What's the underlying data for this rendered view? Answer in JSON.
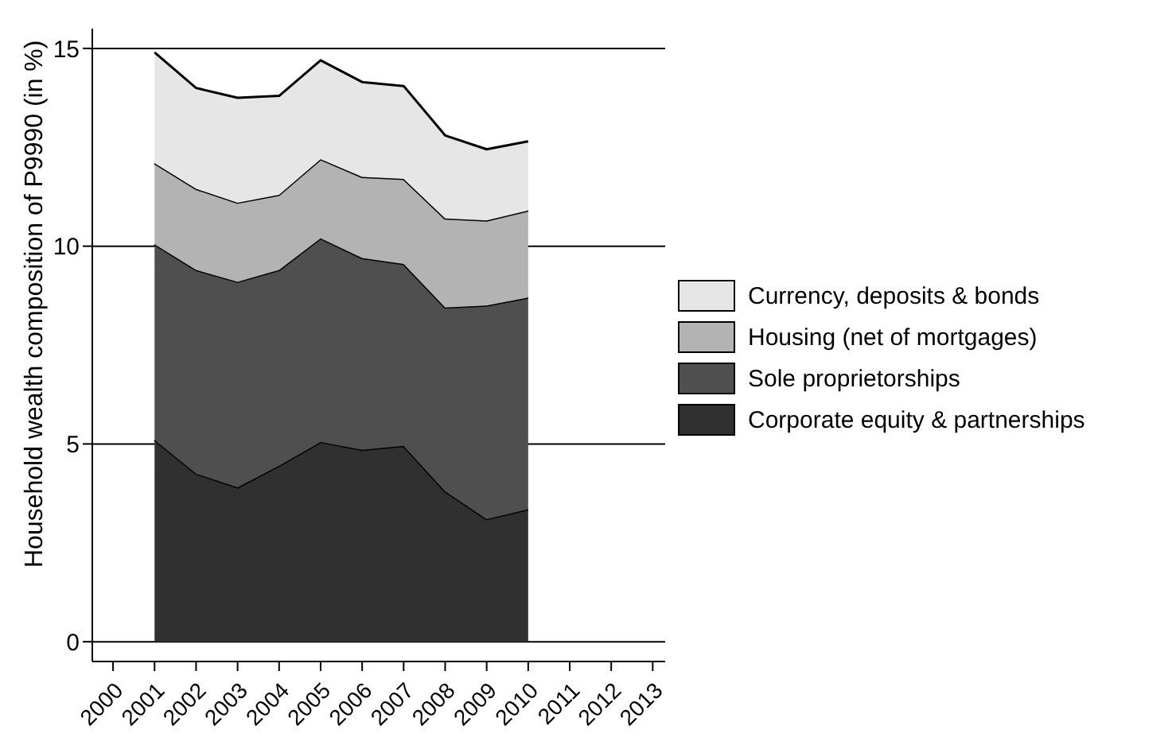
{
  "chart_data": {
    "type": "area",
    "stacked": true,
    "ylabel": "Household wealth composition of P9990 (in %)",
    "x": [
      2001,
      2002,
      2003,
      2004,
      2005,
      2006,
      2007,
      2008,
      2009,
      2010
    ],
    "series": [
      {
        "name": "Corporate equity & partnerships",
        "color": "#303030",
        "values": [
          5.1,
          4.25,
          3.9,
          4.45,
          5.05,
          4.85,
          4.95,
          3.8,
          3.1,
          3.35
        ]
      },
      {
        "name": "Sole proprietorships",
        "color": "#4f4f4f",
        "values": [
          4.95,
          5.15,
          5.2,
          4.95,
          5.15,
          4.85,
          4.6,
          4.65,
          5.4,
          5.35
        ]
      },
      {
        "name": "Housing (net of mortgages)",
        "color": "#b3b3b3",
        "values": [
          2.05,
          2.05,
          2.0,
          1.9,
          2.0,
          2.05,
          2.15,
          2.25,
          2.15,
          2.2
        ]
      },
      {
        "name": "Currency, deposits & bonds",
        "color": "#e6e6e6",
        "values": [
          2.8,
          2.55,
          2.65,
          2.5,
          2.5,
          2.4,
          2.35,
          2.1,
          1.8,
          1.75
        ]
      }
    ],
    "xlim": [
      1999.5,
      2013.3
    ],
    "xticks": [
      2000,
      2001,
      2002,
      2003,
      2004,
      2005,
      2006,
      2007,
      2008,
      2009,
      2010,
      2011,
      2012,
      2013
    ],
    "ylim": [
      -0.5,
      15.5
    ],
    "yticks": [
      0,
      5,
      10,
      15
    ],
    "grid": "y",
    "legend": "right"
  }
}
